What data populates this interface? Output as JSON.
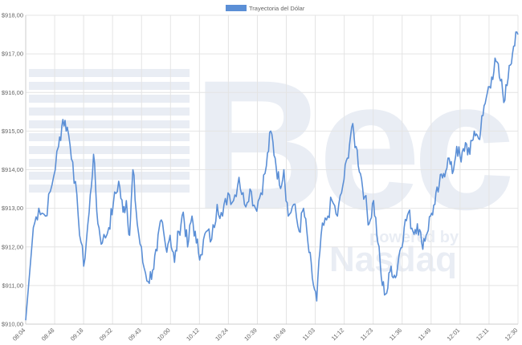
{
  "chart_data": {
    "type": "line",
    "legend": {
      "position": "top-center"
    },
    "series": [
      {
        "name": "Trayectoria del Dólar",
        "color": "#5b8fd6"
      }
    ],
    "ylim": [
      910,
      918
    ],
    "y_ticks": [
      "$910,00",
      "$911,00",
      "$912,00",
      "$913,00",
      "$914,00",
      "$915,00",
      "$916,00",
      "$917,00",
      "$918,00"
    ],
    "x_ticks": [
      "08:04",
      "08:48",
      "09:18",
      "09:32",
      "09:43",
      "10:00",
      "10:12",
      "10:24",
      "10:39",
      "10:49",
      "11:03",
      "11:12",
      "11:23",
      "11:36",
      "11:49",
      "12:01",
      "12:11",
      "12:30"
    ],
    "grid": true,
    "anchors": [
      [
        0,
        910.1
      ],
      [
        0.7,
        912.5
      ],
      [
        1.2,
        913.0
      ],
      [
        1.8,
        912.8
      ],
      [
        2.4,
        913.6
      ],
      [
        3.0,
        914.6
      ],
      [
        3.4,
        915.3
      ],
      [
        3.8,
        915.1
      ],
      [
        4.3,
        914.2
      ],
      [
        4.8,
        912.8
      ],
      [
        5.3,
        911.5
      ],
      [
        5.8,
        912.9
      ],
      [
        6.2,
        914.4
      ],
      [
        6.6,
        912.6
      ],
      [
        7.0,
        912.1
      ],
      [
        7.6,
        912.5
      ],
      [
        8.0,
        913.1
      ],
      [
        8.5,
        913.7
      ],
      [
        8.9,
        912.9
      ],
      [
        9.2,
        913.2
      ],
      [
        9.5,
        912.3
      ],
      [
        9.8,
        914.0
      ],
      [
        10.2,
        912.6
      ],
      [
        10.7,
        911.6
      ],
      [
        11.2,
        911.1
      ],
      [
        11.6,
        911.4
      ],
      [
        12.0,
        911.9
      ],
      [
        12.4,
        912.7
      ],
      [
        12.8,
        912.0
      ],
      [
        13.2,
        912.3
      ],
      [
        13.6,
        911.6
      ],
      [
        14.0,
        912.4
      ],
      [
        14.4,
        912.9
      ],
      [
        14.8,
        912.0
      ],
      [
        15.2,
        912.8
      ],
      [
        15.6,
        912.1
      ],
      [
        16.0,
        911.8
      ],
      [
        16.5,
        912.4
      ],
      [
        17.0,
        912.2
      ],
      [
        17.5,
        913.1
      ],
      [
        18.0,
        912.8
      ],
      [
        18.5,
        913.4
      ],
      [
        19.0,
        913.2
      ],
      [
        19.5,
        913.8
      ],
      [
        20.0,
        913.1
      ],
      [
        20.5,
        913.5
      ],
      [
        21.0,
        913.0
      ],
      [
        21.5,
        913.4
      ],
      [
        22.0,
        914.1
      ],
      [
        22.4,
        915.0
      ],
      [
        22.8,
        914.3
      ],
      [
        23.2,
        913.6
      ],
      [
        23.6,
        914.0
      ],
      [
        24.0,
        912.8
      ],
      [
        24.5,
        913.1
      ],
      [
        25.0,
        912.4
      ],
      [
        25.4,
        913.0
      ],
      [
        25.8,
        912.1
      ],
      [
        26.2,
        911.2
      ],
      [
        26.6,
        910.6
      ],
      [
        27.0,
        912.3
      ],
      [
        27.5,
        912.7
      ],
      [
        28.0,
        913.2
      ],
      [
        28.5,
        912.8
      ],
      [
        29.0,
        913.6
      ],
      [
        29.4,
        914.3
      ],
      [
        29.8,
        915.1
      ],
      [
        30.2,
        914.6
      ],
      [
        30.6,
        913.9
      ],
      [
        31.0,
        913.3
      ],
      [
        31.4,
        912.6
      ],
      [
        31.8,
        913.2
      ],
      [
        32.2,
        912.1
      ],
      [
        32.6,
        911.0
      ],
      [
        33.0,
        910.8
      ],
      [
        33.4,
        911.5
      ],
      [
        33.8,
        911.2
      ],
      [
        34.2,
        911.9
      ],
      [
        34.6,
        912.5
      ],
      [
        35.0,
        912.9
      ],
      [
        35.4,
        912.4
      ],
      [
        35.8,
        912.6
      ],
      [
        36.2,
        912.1
      ],
      [
        36.6,
        912.3
      ],
      [
        37.0,
        912.8
      ],
      [
        37.4,
        913.1
      ],
      [
        37.8,
        913.6
      ],
      [
        38.2,
        913.9
      ],
      [
        38.6,
        914.3
      ],
      [
        39.0,
        913.9
      ],
      [
        39.4,
        914.6
      ],
      [
        39.8,
        914.2
      ],
      [
        40.2,
        914.7
      ],
      [
        40.6,
        914.4
      ],
      [
        41.0,
        915.0
      ],
      [
        41.4,
        914.8
      ],
      [
        41.8,
        915.4
      ],
      [
        42.2,
        916.0
      ],
      [
        42.6,
        916.4
      ],
      [
        43.0,
        916.8
      ],
      [
        43.4,
        916.3
      ],
      [
        43.8,
        915.8
      ],
      [
        44.2,
        916.7
      ],
      [
        44.6,
        917.2
      ],
      [
        45.0,
        917.5
      ]
    ]
  }
}
